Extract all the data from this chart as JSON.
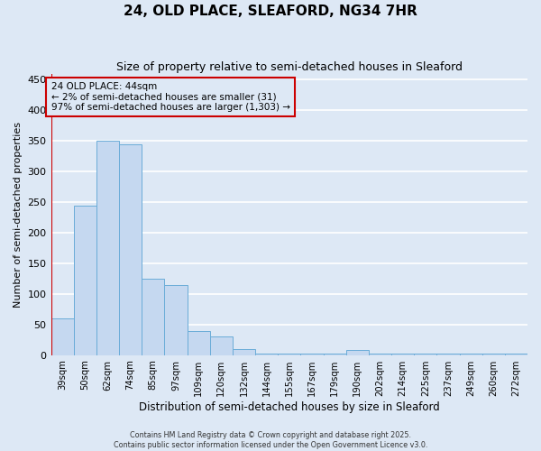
{
  "title1": "24, OLD PLACE, SLEAFORD, NG34 7HR",
  "title2": "Size of property relative to semi-detached houses in Sleaford",
  "xlabel": "Distribution of semi-detached houses by size in Sleaford",
  "ylabel": "Number of semi-detached properties",
  "categories": [
    "39sqm",
    "50sqm",
    "62sqm",
    "74sqm",
    "85sqm",
    "97sqm",
    "109sqm",
    "120sqm",
    "132sqm",
    "144sqm",
    "155sqm",
    "167sqm",
    "179sqm",
    "190sqm",
    "202sqm",
    "214sqm",
    "225sqm",
    "237sqm",
    "249sqm",
    "260sqm",
    "272sqm"
  ],
  "values": [
    60,
    245,
    350,
    345,
    125,
    115,
    40,
    30,
    10,
    3,
    3,
    3,
    3,
    8,
    3,
    3,
    3,
    2,
    2,
    2,
    2
  ],
  "bar_color": "#c5d8f0",
  "bar_edgecolor": "#6aacd8",
  "bg_color": "#dde8f5",
  "grid_color": "#ffffff",
  "vline_color": "#cc0000",
  "annotation_line1": "24 OLD PLACE: 44sqm",
  "annotation_line2": "← 2% of semi-detached houses are smaller (31)",
  "annotation_line3": "97% of semi-detached houses are larger (1,303) →",
  "annotation_box_color": "#cc0000",
  "ylim": [
    0,
    460
  ],
  "yticks": [
    0,
    50,
    100,
    150,
    200,
    250,
    300,
    350,
    400,
    450
  ],
  "title1_fontsize": 11,
  "title2_fontsize": 9,
  "footer1": "Contains HM Land Registry data © Crown copyright and database right 2025.",
  "footer2": "Contains public sector information licensed under the Open Government Licence v3.0."
}
